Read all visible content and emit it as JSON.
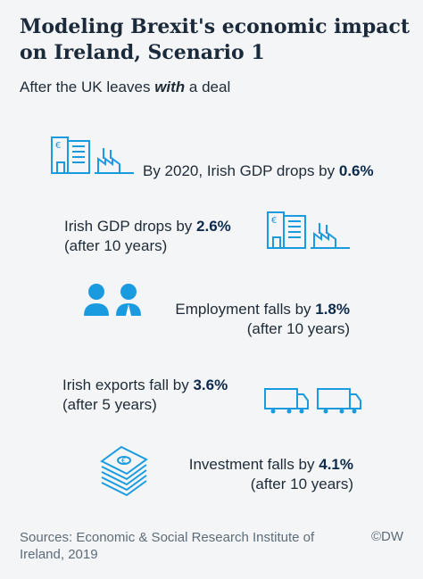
{
  "title": "Modeling Brexit's economic impact on Ireland, Scenario 1",
  "subtitle": {
    "prefix": "After the UK leaves ",
    "emphasis": "with",
    "suffix": " a deal"
  },
  "items": [
    {
      "text": "By 2020, Irish GDP drops by ",
      "value": "0.6%",
      "line2": "",
      "icon": "office-factory-icon"
    },
    {
      "text": "Irish GDP drops by ",
      "value": "2.6%",
      "line2": "(after 10 years)",
      "icon": "office-factory-icon"
    },
    {
      "text": "Employment falls by ",
      "value": "1.8%",
      "line2": "(after 10 years)",
      "icon": "people-icon"
    },
    {
      "text": "Irish exports fall by ",
      "value": "3.6%",
      "line2": "(after 5 years)",
      "icon": "trucks-icon"
    },
    {
      "text": "Investment falls by ",
      "value": "4.1%",
      "line2": "(after 10 years)",
      "icon": "banknotes-icon"
    }
  ],
  "footer": {
    "sources": "Sources: Economic & Social Research Institute of Ireland, 2019",
    "copyright": "©DW"
  },
  "colors": {
    "icon": "#1a9be0",
    "text": "#1f2b36",
    "value": "#0d2a4a",
    "background": "#f4f5f7"
  }
}
